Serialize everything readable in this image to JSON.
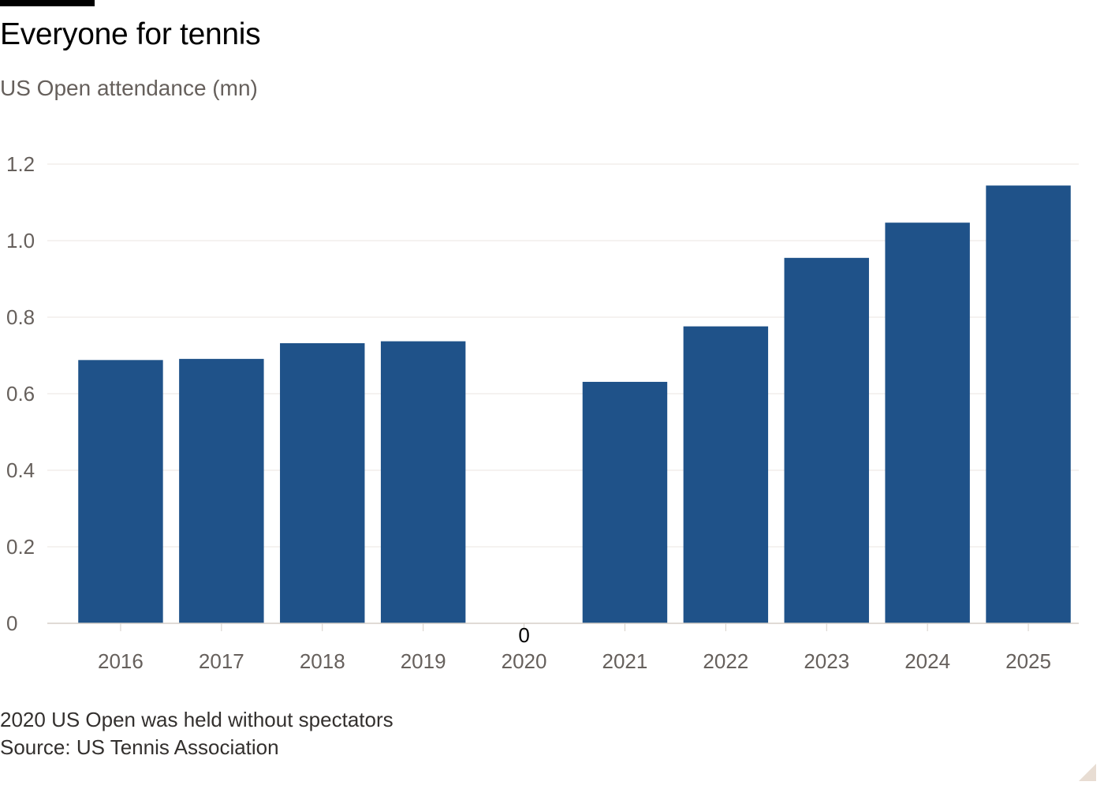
{
  "chart_data": {
    "type": "bar",
    "title": "Everyone for tennis",
    "subtitle": "US Open attendance (mn)",
    "categories": [
      "2016",
      "2017",
      "2018",
      "2019",
      "2020",
      "2021",
      "2022",
      "2023",
      "2024",
      "2025"
    ],
    "values": [
      0.688,
      0.691,
      0.732,
      0.737,
      0,
      0.631,
      0.776,
      0.955,
      1.047,
      1.144
    ],
    "data_labels": [
      {
        "category": "2020",
        "text": "0"
      }
    ],
    "ylim": [
      0,
      1.2
    ],
    "yticks": [
      {
        "value": 0,
        "label": "0"
      },
      {
        "value": 0.2,
        "label": "0.2"
      },
      {
        "value": 0.4,
        "label": "0.4"
      },
      {
        "value": 0.6,
        "label": "0.6"
      },
      {
        "value": 0.8,
        "label": "0.8"
      },
      {
        "value": 1.0,
        "label": "1.0"
      },
      {
        "value": 1.2,
        "label": "1.2"
      }
    ],
    "xlabel": "",
    "ylabel": "",
    "grid": true,
    "legend": "none",
    "colors": {
      "bar": "#1f5289",
      "grid": "#ebe6e1",
      "axis": "#d6cfc8"
    }
  },
  "footer": {
    "note": "2020 US Open was held without spectators",
    "source": "Source: US Tennis Association"
  }
}
